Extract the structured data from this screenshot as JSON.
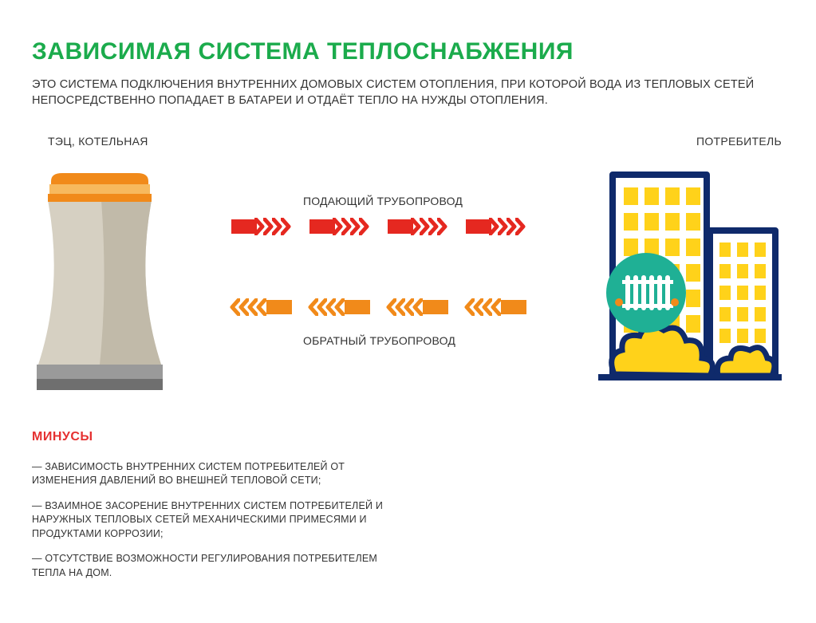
{
  "colors": {
    "title": "#1bab4c",
    "text": "#333333",
    "minuses_title": "#e53030",
    "supply": "#e52820",
    "return": "#f18a1a",
    "tower_top": "#f18a1a",
    "tower_mid": "#f7b95e",
    "tower_body_light": "#d6d0c2",
    "tower_body_dark": "#c1baa9",
    "tower_base_light": "#9a9a9a",
    "tower_base_dark": "#6f6f6f",
    "building_outline": "#0f2a6b",
    "building_windows": "#ffd21a",
    "radiator_circle": "#1fb095",
    "radiator_body": "#ffffff",
    "radiator_knob": "#f18a1a",
    "bush": "#ffd21a"
  },
  "layout": {
    "segments_per_row": 4,
    "chevrons_per_segment": 4
  },
  "title": "ЗАВИСИМАЯ СИСТЕМА ТЕПЛОСНАБЖЕНИЯ",
  "subtitle": "ЭТО СИСТЕМА ПОДКЛЮЧЕНИЯ ВНУТРЕННИХ ДОМОВЫХ СИСТЕМ ОТОПЛЕНИЯ, ПРИ КОТОРОЙ ВОДА ИЗ ТЕПЛОВЫХ СЕТЕЙ НЕПОСРЕДСТВЕННО ПОПАДАЕТ В БАТАРЕИ И ОТДАЁТ ТЕПЛО НА НУЖДЫ ОТОПЛЕНИЯ.",
  "plant_label": "ТЭЦ, КОТЕЛЬНАЯ",
  "consumer_label": "ПОТРЕБИТЕЛЬ",
  "pipe_supply_label": "ПОДАЮЩИЙ ТРУБОПРОВОД",
  "pipe_return_label": "ОБРАТНЫЙ ТРУБОПРОВОД",
  "minuses": {
    "title": "МИНУСЫ",
    "items": [
      "— ЗАВИСИМОСТЬ ВНУТРЕННИХ СИСТЕМ ПОТРЕБИТЕЛЕЙ ОТ ИЗМЕНЕНИЯ ДАВЛЕНИЙ ВО ВНЕШНЕЙ ТЕПЛОВОЙ СЕТИ;",
      "— ВЗАИМНОЕ ЗАСОРЕНИЕ ВНУТРЕННИХ СИСТЕМ ПОТРЕБИТЕЛЕЙ И НАРУЖНЫХ ТЕПЛОВЫХ СЕТЕЙ МЕХАНИЧЕСКИМИ ПРИМЕСЯМИ И ПРОДУКТАМИ КОРРОЗИИ;",
      "— ОТСУТСТВИЕ ВОЗМОЖНОСТИ РЕГУЛИРОВАНИЯ ПОТРЕБИТЕЛЕМ ТЕПЛА НА ДОМ."
    ]
  }
}
